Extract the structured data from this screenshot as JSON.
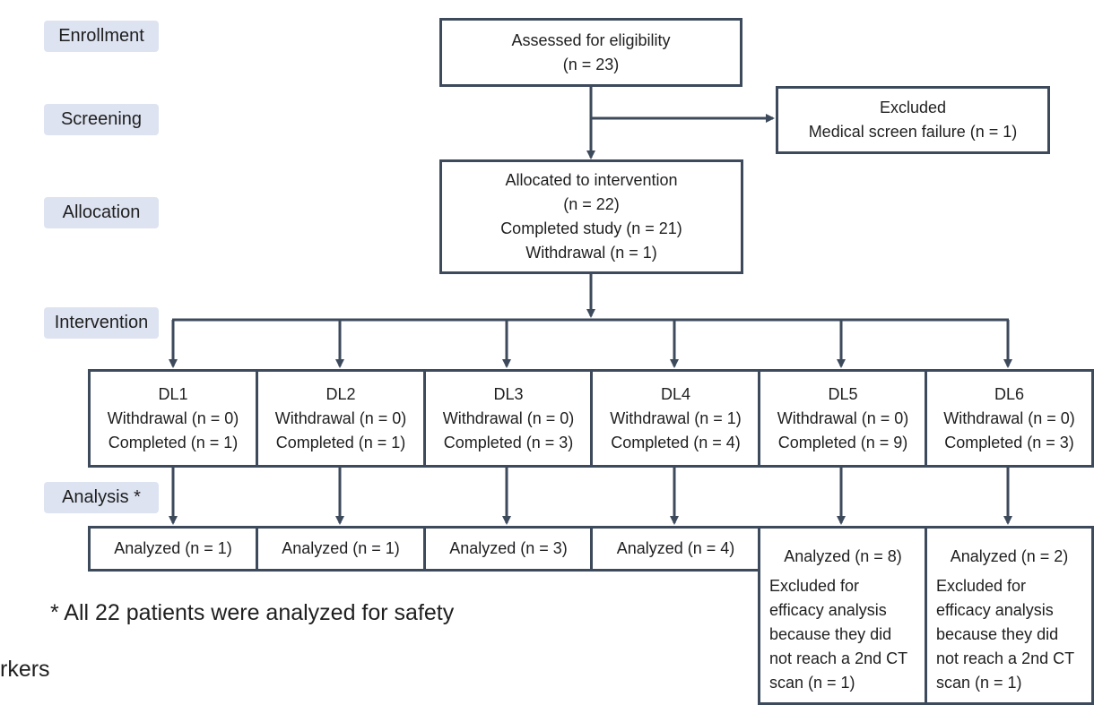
{
  "stages": {
    "enrollment": "Enrollment",
    "screening": "Screening",
    "allocation": "Allocation",
    "intervention": "Intervention",
    "analysis": "Analysis *"
  },
  "assessed": {
    "line1": "Assessed for eligibility",
    "line2": "(n = 23)"
  },
  "excluded": {
    "line1": "Excluded",
    "line2": "Medical screen failure (n = 1)"
  },
  "allocated": {
    "line1": "Allocated to intervention",
    "line2": "(n = 22)",
    "line3": "Completed study (n = 21)",
    "line4": "Withdrawal (n = 1)"
  },
  "dose_levels": [
    {
      "name": "DL1",
      "withdrawal": "Withdrawal (n = 0)",
      "completed": "Completed (n = 1)",
      "analyzed": "Analyzed (n = 1)"
    },
    {
      "name": "DL2",
      "withdrawal": "Withdrawal (n = 0)",
      "completed": "Completed (n = 1)",
      "analyzed": "Analyzed (n = 1)"
    },
    {
      "name": "DL3",
      "withdrawal": "Withdrawal (n = 0)",
      "completed": "Completed (n = 3)",
      "analyzed": "Analyzed (n = 3)"
    },
    {
      "name": "DL4",
      "withdrawal": "Withdrawal (n = 1)",
      "completed": "Completed (n = 4)",
      "analyzed": "Analyzed (n = 4)"
    },
    {
      "name": "DL5",
      "withdrawal": "Withdrawal (n = 0)",
      "completed": "Completed (n = 9)",
      "analyzed": "Analyzed (n = 8)",
      "excluded_note": "Excluded for efficacy analysis because they did not reach a 2nd CT scan (n = 1)"
    },
    {
      "name": "DL6",
      "withdrawal": "Withdrawal (n = 0)",
      "completed": "Completed (n = 3)",
      "analyzed": "Analyzed (n = 2)",
      "excluded_note": "Excluded for efficacy analysis because they did not reach a 2nd CT scan (n = 1)"
    }
  ],
  "footnote": "* All 22 patients were analyzed for safety",
  "cutoff_text": "rkers",
  "colors": {
    "line": "#3d4a5c",
    "stage_bg": "#dde3f1"
  }
}
